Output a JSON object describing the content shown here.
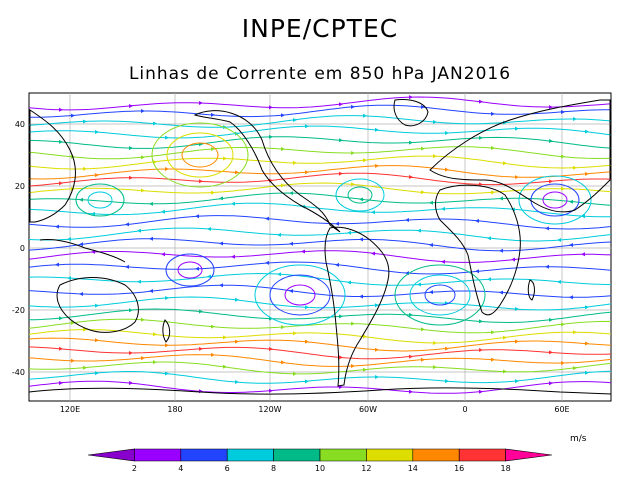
{
  "title": "INPE/CPTEC",
  "subtitle": "Linhas de Corrente em 850 hPa JAN2016",
  "map": {
    "lat_labels": [
      "40",
      "20",
      "0",
      "-20",
      "-40"
    ],
    "lon_labels": [
      "120E",
      "180",
      "120W",
      "60W",
      "0",
      "60E"
    ],
    "grid": true
  },
  "colorbar": {
    "units": "m/s",
    "ticks": [
      "2",
      "4",
      "6",
      "8",
      "10",
      "12",
      "14",
      "16",
      "18"
    ],
    "colors": [
      "#8800cc",
      "#9900ff",
      "#2244ff",
      "#00ccdd",
      "#00bb88",
      "#88dd22",
      "#dddd00",
      "#ff8800",
      "#ff3333",
      "#ff0099"
    ]
  },
  "streamline_colors": [
    "#9900ff",
    "#2244ff",
    "#00ccdd",
    "#00bb88",
    "#88dd22",
    "#dddd00",
    "#ff8800",
    "#ff3333"
  ]
}
